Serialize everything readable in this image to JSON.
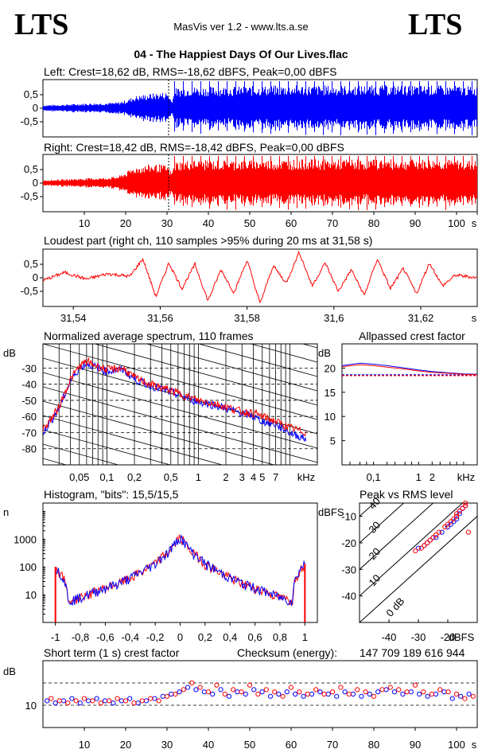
{
  "header": {
    "logo_left": "LTS",
    "logo_right": "LTS",
    "app": "MasVis ver 1.2 - www.lts.a.se",
    "track": "04 - The Happiest Days Of Our Lives.flac"
  },
  "colors": {
    "left": "#0000ff",
    "right": "#ff0000",
    "axis": "#000000"
  },
  "panels": {
    "left_wave": {
      "title": "Left: Crest=18,62 dB, RMS=-18,62 dBFS, Peak=0,00 dBFS"
    },
    "right_wave": {
      "title": "Right: Crest=18,42 dB, RMS=-18,42 dBFS, Peak=0,00 dBFS"
    },
    "loudest": {
      "title": "Loudest part (right ch, 110 samples >95% during 20 ms at 31,58 s)"
    },
    "spectrum": {
      "title": "Normalized average spectrum, 110 frames"
    },
    "allpass": {
      "title": "Allpassed crest factor"
    },
    "histogram": {
      "title": "Histogram, \"bits\": 15,5/15,5"
    },
    "peak_rms": {
      "title": "Peak vs RMS level"
    },
    "short_term": {
      "title": "Short term (1 s) crest factor",
      "checksum_label": "Checksum (energy):",
      "checksum_value": "147 709 189 616 944"
    }
  },
  "chart_data": [
    {
      "id": "left_wave",
      "type": "area",
      "channel": "left",
      "title": "Left: Crest=18,62 dB, RMS=-18,62 dBFS, Peak=0,00 dBFS",
      "ylim": [
        -1,
        1
      ],
      "xlim": [
        0,
        105
      ],
      "y_ticks": [
        "0,5",
        "0",
        "-0,5"
      ],
      "envelope": {
        "x": [
          0,
          5,
          10,
          15,
          18,
          20,
          22,
          24,
          26,
          28,
          30,
          31,
          32,
          35,
          40,
          50,
          60,
          70,
          80,
          90,
          100,
          105
        ],
        "amp": [
          0.12,
          0.14,
          0.18,
          0.2,
          0.22,
          0.3,
          0.45,
          0.5,
          0.55,
          0.58,
          0.6,
          0.3,
          0.75,
          0.8,
          0.8,
          0.82,
          0.85,
          0.85,
          0.85,
          0.85,
          0.84,
          0.8
        ]
      }
    },
    {
      "id": "right_wave",
      "type": "area",
      "channel": "right",
      "title": "Right: Crest=18,42 dB, RMS=-18,42 dBFS, Peak=0,00 dBFS",
      "ylim": [
        -1,
        1
      ],
      "xlim": [
        0,
        105
      ],
      "y_ticks": [
        "0,5",
        "0",
        "-0,5"
      ],
      "x_ticks": [
        "10",
        "20",
        "30",
        "40",
        "50",
        "60",
        "70",
        "80",
        "90",
        "100",
        "s"
      ],
      "envelope": {
        "x": [
          0,
          5,
          10,
          15,
          18,
          20,
          22,
          24,
          26,
          28,
          30,
          31,
          32,
          35,
          40,
          50,
          60,
          70,
          80,
          90,
          100,
          105
        ],
        "amp": [
          0.12,
          0.14,
          0.18,
          0.2,
          0.25,
          0.4,
          0.6,
          0.65,
          0.7,
          0.7,
          0.65,
          0.4,
          0.8,
          0.85,
          0.85,
          0.85,
          0.88,
          0.88,
          0.88,
          0.88,
          0.86,
          0.82
        ]
      }
    },
    {
      "id": "loudest",
      "type": "line",
      "channel": "right",
      "title": "Loudest part (right ch, 110 samples >95% during 20 ms at 31,58 s)",
      "ylim": [
        -1,
        1
      ],
      "xlim": [
        31.533,
        31.633
      ],
      "y_ticks": [
        "0,5",
        "0",
        "-0,5"
      ],
      "x_ticks": [
        "31,54",
        "31,56",
        "31,58",
        "31,6",
        "31,62",
        "s"
      ],
      "x": [
        31.533,
        31.538,
        31.543,
        31.548,
        31.553,
        31.556,
        31.559,
        31.562,
        31.565,
        31.568,
        31.571,
        31.574,
        31.577,
        31.58,
        31.583,
        31.586,
        31.589,
        31.592,
        31.595,
        31.598,
        31.601,
        31.604,
        31.607,
        31.61,
        31.613,
        31.616,
        31.619,
        31.622,
        31.625,
        31.628,
        31.633
      ],
      "y": [
        -0.1,
        0.2,
        -0.05,
        0.15,
        0.05,
        0.7,
        -0.7,
        0.55,
        -0.4,
        0.5,
        -0.85,
        0.3,
        -0.55,
        0.65,
        -0.95,
        0.45,
        -0.2,
        0.95,
        -0.3,
        0.55,
        -0.5,
        0.3,
        -0.65,
        0.7,
        -0.4,
        0.35,
        -0.6,
        0.55,
        -0.3,
        0.1,
        0.0
      ]
    },
    {
      "id": "spectrum",
      "type": "line",
      "title": "Normalized average spectrum, 110 frames",
      "ylabel": "dB",
      "xlabel": "kHz",
      "ylim": [
        -90,
        -15
      ],
      "y_ticks": [
        "-30",
        "-40",
        "-50",
        "-60",
        "-70",
        "-80"
      ],
      "x_ticks": [
        "0,05",
        "0,1",
        "0,2",
        "0,5",
        "1",
        "2",
        "3",
        "4",
        "5",
        "7",
        "kHz"
      ],
      "series": [
        {
          "channel": "left",
          "x": [
            0.02,
            0.025,
            0.03,
            0.04,
            0.05,
            0.06,
            0.08,
            0.1,
            0.15,
            0.2,
            0.3,
            0.5,
            0.7,
            1,
            1.5,
            2,
            3,
            4,
            5,
            7,
            10,
            15
          ],
          "y": [
            -70,
            -62,
            -55,
            -38,
            -30,
            -27,
            -30,
            -32,
            -31,
            -37,
            -41,
            -45,
            -48,
            -51,
            -53,
            -55,
            -58,
            -60,
            -63,
            -65,
            -70,
            -74
          ]
        },
        {
          "channel": "right",
          "x": [
            0.02,
            0.025,
            0.03,
            0.04,
            0.05,
            0.06,
            0.08,
            0.1,
            0.15,
            0.2,
            0.3,
            0.5,
            0.7,
            1,
            1.5,
            2,
            3,
            4,
            5,
            7,
            10,
            15
          ],
          "y": [
            -68,
            -61,
            -54,
            -37,
            -29,
            -26,
            -29,
            -31,
            -30,
            -36,
            -40,
            -44,
            -47,
            -50,
            -52,
            -54,
            -57,
            -58,
            -60,
            -63,
            -67,
            -70
          ]
        }
      ]
    },
    {
      "id": "allpass",
      "type": "line",
      "title": "Allpassed crest factor",
      "ylabel": "dB",
      "xlabel": "kHz",
      "ylim": [
        0,
        25
      ],
      "y_ticks": [
        "20",
        "15",
        "10",
        "5"
      ],
      "x_ticks": [
        "0,1",
        "1",
        "2",
        "kHz"
      ],
      "reference_db": 18.6,
      "series": [
        {
          "channel": "left",
          "x": [
            0.02,
            0.05,
            0.1,
            0.2,
            0.5,
            1,
            2,
            5,
            10,
            20
          ],
          "y": [
            20.5,
            21.0,
            20.8,
            20.5,
            20.0,
            19.6,
            19.3,
            19.0,
            18.8,
            18.7
          ]
        },
        {
          "channel": "right",
          "x": [
            0.02,
            0.05,
            0.1,
            0.2,
            0.5,
            1,
            2,
            5,
            10,
            20
          ],
          "y": [
            20.3,
            20.7,
            20.5,
            20.2,
            19.8,
            19.4,
            19.1,
            18.9,
            18.7,
            18.6
          ]
        }
      ]
    },
    {
      "id": "histogram",
      "type": "line",
      "title": "Histogram, \"bits\": 15,5/15,5",
      "ylabel": "n",
      "xlim": [
        -1.1,
        1.1
      ],
      "y_ticks": [
        "1000",
        "100",
        "10"
      ],
      "x_ticks": [
        "-1",
        "-0,8",
        "-0,6",
        "-0,4",
        "-0,2",
        "0",
        "0,2",
        "0,4",
        "0,6",
        "0,8",
        "1"
      ],
      "x": [
        -1,
        -0.9,
        -0.8,
        -0.7,
        -0.6,
        -0.5,
        -0.4,
        -0.3,
        -0.2,
        -0.1,
        -0.05,
        0,
        0.05,
        0.1,
        0.2,
        0.3,
        0.4,
        0.5,
        0.6,
        0.7,
        0.8,
        0.9,
        1
      ],
      "y": [
        100,
        6,
        8,
        12,
        18,
        25,
        40,
        70,
        130,
        320,
        600,
        1200,
        600,
        320,
        130,
        70,
        40,
        25,
        18,
        12,
        8,
        6,
        130
      ]
    },
    {
      "id": "peak_rms",
      "type": "scatter",
      "title": "Peak vs RMS level",
      "ylabel": "dBFS",
      "xlabel": "dBFS",
      "xlim": [
        -50,
        -10
      ],
      "ylim": [
        -50,
        -5
      ],
      "y_ticks": [
        "-10",
        "-20",
        "-30",
        "-40"
      ],
      "x_ticks": [
        "-40",
        "-30",
        "-20",
        "dBFS"
      ],
      "crest_lines": [
        "0 dB",
        "10",
        "20",
        "30",
        "40"
      ],
      "series": [
        {
          "channel": "left",
          "x": [
            -30,
            -28,
            -27,
            -26,
            -25,
            -24,
            -22,
            -20,
            -19,
            -18,
            -17,
            -17,
            -16,
            -16,
            -15,
            -15,
            -14
          ],
          "y": [
            -22,
            -21,
            -20,
            -19,
            -18,
            -18,
            -16,
            -14,
            -13,
            -12,
            -11,
            -10,
            -9,
            -8,
            -7,
            -7,
            -6
          ]
        },
        {
          "channel": "right",
          "x": [
            -31,
            -29,
            -28,
            -27,
            -26,
            -25,
            -24,
            -23,
            -21,
            -20,
            -19,
            -18,
            -17,
            -17,
            -16,
            -15,
            -14,
            -14,
            -13
          ],
          "y": [
            -23,
            -22,
            -21,
            -20,
            -19,
            -18,
            -17,
            -16,
            -14,
            -13,
            -12,
            -11,
            -10,
            -9,
            -8,
            -7,
            -6,
            -5,
            -16
          ]
        }
      ]
    },
    {
      "id": "short_term",
      "type": "scatter",
      "title": "Short term (1 s) crest factor",
      "ylabel": "dB",
      "xlabel": "s",
      "xlim": [
        0,
        105
      ],
      "ylim": [
        0,
        30
      ],
      "y_ticks": [
        "10"
      ],
      "x_ticks": [
        "10",
        "20",
        "30",
        "40",
        "50",
        "60",
        "70",
        "80",
        "90",
        "100",
        "s"
      ],
      "reference_lines": [
        10,
        20
      ],
      "series": [
        {
          "channel": "left",
          "x": [
            1,
            3,
            5,
            7,
            9,
            11,
            13,
            15,
            17,
            19,
            21,
            23,
            25,
            27,
            29,
            31,
            33,
            35,
            37,
            39,
            41,
            43,
            45,
            47,
            49,
            51,
            53,
            55,
            57,
            59,
            61,
            63,
            65,
            67,
            69,
            71,
            73,
            75,
            77,
            79,
            81,
            83,
            85,
            87,
            89,
            91,
            93,
            95,
            97,
            99,
            101,
            103
          ],
          "y": [
            12,
            11,
            12,
            13,
            11,
            12,
            13,
            12,
            11,
            12,
            13,
            11,
            12,
            13,
            14,
            15,
            16,
            18,
            17,
            16,
            15,
            17,
            14,
            16,
            15,
            17,
            16,
            14,
            15,
            16,
            15,
            14,
            15,
            16,
            15,
            14,
            16,
            15,
            14,
            15,
            16,
            17,
            16,
            15,
            16,
            15,
            14,
            15,
            16,
            13,
            14,
            15
          ]
        },
        {
          "channel": "right",
          "x": [
            2,
            4,
            6,
            8,
            10,
            12,
            14,
            16,
            18,
            20,
            22,
            24,
            26,
            28,
            30,
            32,
            34,
            36,
            38,
            40,
            42,
            44,
            46,
            48,
            50,
            52,
            54,
            56,
            58,
            60,
            62,
            64,
            66,
            68,
            70,
            72,
            74,
            76,
            78,
            80,
            82,
            84,
            86,
            88,
            90,
            92,
            94,
            96,
            98,
            100,
            102,
            104
          ],
          "y": [
            13,
            12,
            11,
            12,
            13,
            12,
            11,
            12,
            13,
            12,
            11,
            12,
            13,
            12,
            14,
            15,
            17,
            20,
            18,
            16,
            19,
            15,
            17,
            16,
            19,
            15,
            17,
            16,
            14,
            18,
            16,
            15,
            17,
            15,
            16,
            18,
            15,
            17,
            16,
            14,
            17,
            18,
            17,
            16,
            19,
            16,
            15,
            17,
            16,
            15,
            13,
            14
          ]
        }
      ]
    }
  ]
}
